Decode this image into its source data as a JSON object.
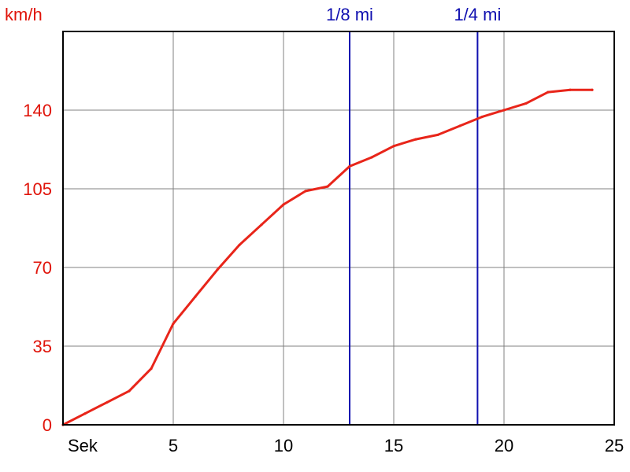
{
  "colors": {
    "series": "#e8251a",
    "y_axis_text": "#e0140a",
    "marker": "#1010b0",
    "grid": "#808080",
    "axis": "#000000"
  },
  "chart_data": {
    "type": "line",
    "ylabel": "km/h",
    "xlabel": "Sek",
    "xlim": [
      0,
      25
    ],
    "ylim": [
      0,
      175
    ],
    "x_ticks": [
      5,
      10,
      15,
      20,
      25
    ],
    "y_ticks": [
      0,
      35,
      70,
      105,
      140
    ],
    "grid": true,
    "series": [
      {
        "x": [
          0,
          1,
          2,
          3,
          4,
          5,
          6,
          7,
          8,
          9,
          10,
          11,
          12,
          13,
          14,
          15,
          16,
          17,
          18,
          19,
          20,
          21,
          22,
          23,
          24
        ],
        "values": [
          0,
          5,
          10,
          15,
          25,
          45,
          57,
          69,
          80,
          89,
          98,
          104,
          106,
          115,
          119,
          124,
          127,
          129,
          133,
          137,
          140,
          143,
          148,
          149,
          149
        ]
      }
    ],
    "markers": [
      {
        "label": "1/8 mi",
        "x": 13
      },
      {
        "label": "1/4 mi",
        "x": 18.8
      }
    ]
  }
}
